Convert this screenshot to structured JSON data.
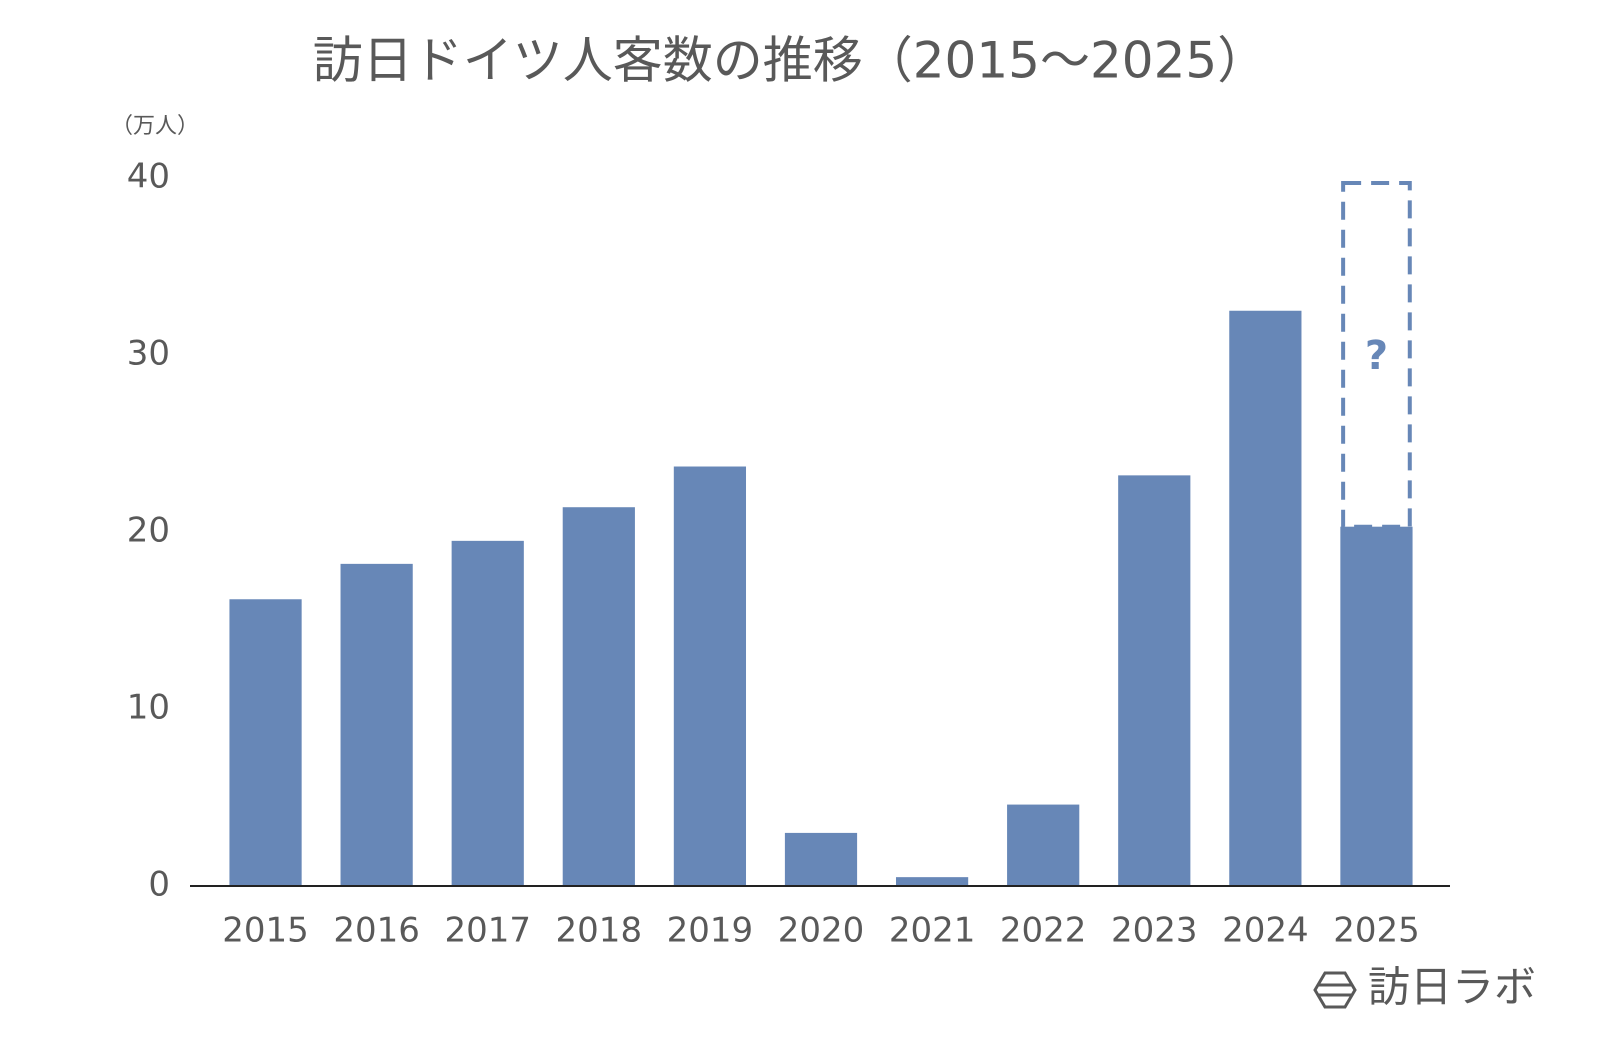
{
  "chart_data": {
    "type": "bar",
    "title": "訪日ドイツ人客数の推移（2015～2025）",
    "y_unit_label": "（万人）",
    "categories": [
      "2015",
      "2016",
      "2017",
      "2018",
      "2019",
      "2020",
      "2021",
      "2022",
      "2023",
      "2024",
      "2025"
    ],
    "values": [
      16.2,
      18.2,
      19.5,
      21.4,
      23.7,
      3.0,
      0.5,
      4.6,
      23.2,
      32.5,
      20.3
    ],
    "color": "#6787b7",
    "ylim": [
      0,
      40
    ],
    "yticks": [
      0,
      10,
      20,
      30,
      40
    ],
    "grid": false,
    "annotation": "?",
    "watermark": "訪日ラボ"
  }
}
